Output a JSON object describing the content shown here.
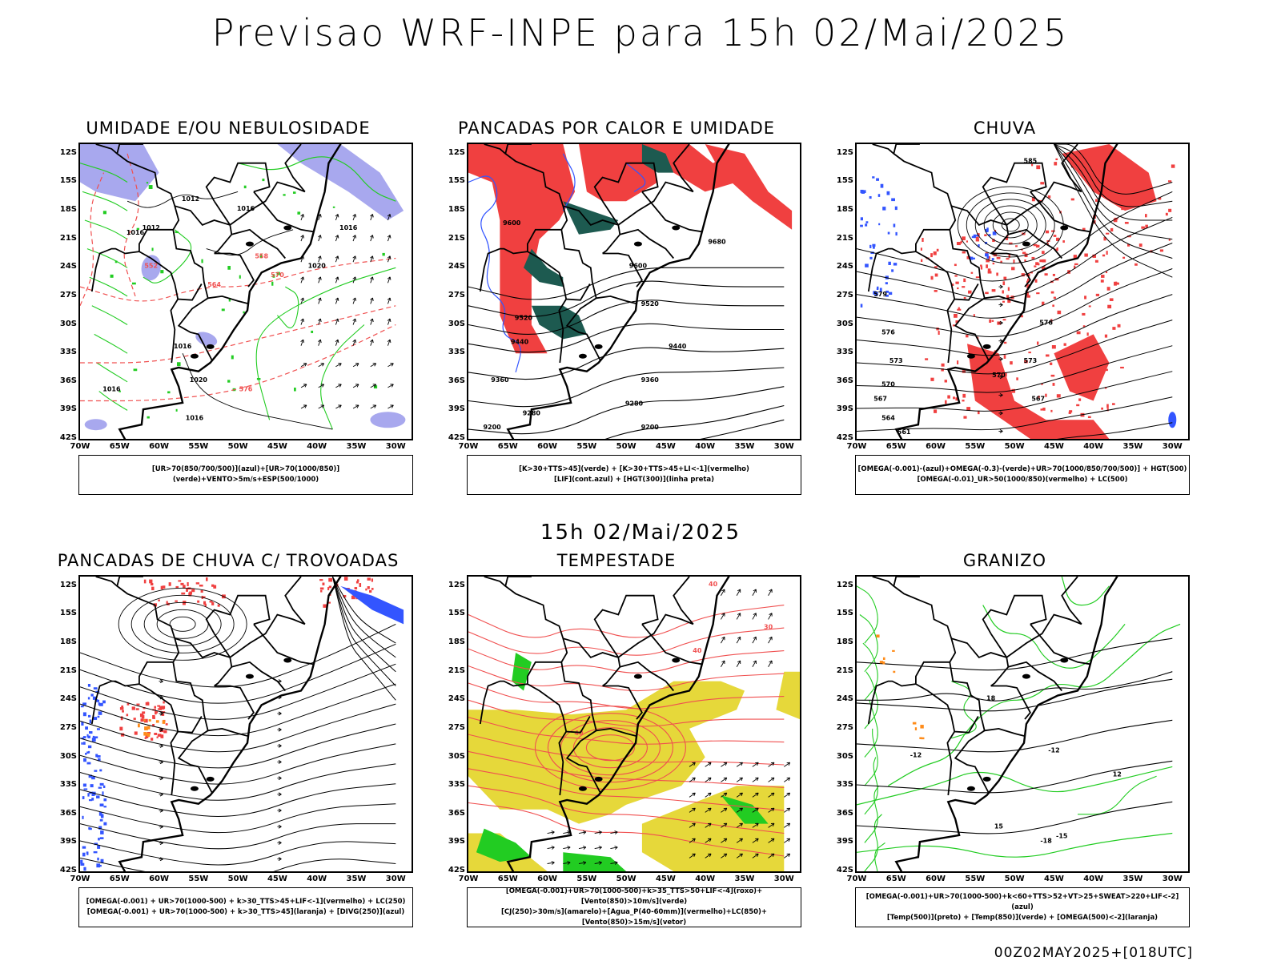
{
  "header": {
    "title": "Previsao WRF-INPE  para 15h 02/Mai/2025",
    "subtitle": "15h 02/Mai/2025",
    "footer": "00Z02MAY2025+[018UTC]"
  },
  "axes": {
    "lat_labels": [
      "12S",
      "15S",
      "18S",
      "21S",
      "24S",
      "27S",
      "30S",
      "33S",
      "36S",
      "39S",
      "42S"
    ],
    "lon_labels": [
      "70W",
      "65W",
      "60W",
      "55W",
      "50W",
      "45W",
      "40W",
      "35W",
      "30W"
    ]
  },
  "colors": {
    "blue_shade": "#a8a8ee",
    "green_line": "#22cc22",
    "red_fill": "#f04040",
    "dark_teal": "#1d5a50",
    "blue_line": "#3355ff",
    "yellow_fill": "#e6d83a",
    "red_line": "#f05050",
    "black": "#000000"
  },
  "chart_data": [
    {
      "type": "map",
      "title": "UMIDADE E/OU NEBULOSIDADE",
      "legend": [
        "[UR>70(850/700/500)](azul)+[UR>70(1000/850)](verde)+VENTO>5m/s+ESP(500/1000)"
      ],
      "contour_labels": [
        "1012",
        "1016",
        "1016",
        "1020",
        "1016",
        "1016",
        "1016",
        "570",
        "576",
        "564",
        "558",
        "552",
        "1020",
        "1012",
        "1016"
      ]
    },
    {
      "type": "map",
      "title": "PANCADAS POR CALOR E UMIDADE",
      "legend": [
        "[K>30+TTS>45](verde) + [K>30+TTS>45+LI<-1](vermelho)",
        "[LIF](cont.azul) + [HGT(300)](linha preta)"
      ],
      "contour_labels": [
        "9600",
        "9520",
        "9440",
        "9360",
        "9280",
        "9200",
        "9680",
        "9600",
        "9520",
        "9440",
        "9360",
        "9280",
        "9200"
      ]
    },
    {
      "type": "map",
      "title": "CHUVA",
      "legend": [
        "[OMEGA(-0.001)-(azul)+OMEGA(-0.3)-(verde)+UR>70(1000/850/700/500)] + HGT(500)",
        "[OMEGA(-0.01)_UR>50(1000/850)(vermelho) + LC(500)"
      ],
      "contour_labels": [
        "585",
        "579",
        "576",
        "573",
        "570",
        "567",
        "564",
        "561",
        "576",
        "573",
        "570",
        "567"
      ]
    },
    {
      "type": "map",
      "title": "PANCADAS DE CHUVA C/ TROVOADAS",
      "legend": [
        "[OMEGA(-0.001) + UR>70(1000-500) + k>30_TTS>45+LIF<-1](vermelho) + LC(250)",
        "[OMEGA(-0.001) + UR>70(1000-500) + k>30_TTS>45](laranja) + [DIVG(250)](azul)"
      ],
      "contour_labels": []
    },
    {
      "type": "map",
      "title": "TEMPESTADE",
      "legend": [
        "[OMEGA(-0.001)+UR>70(1000-500)+k>35_TTS>50+LIF<-4](roxo)+[Vento(850)>10m/s](verde)",
        "[CJ(250)>30m/s](amarelo)+[Agua_P(40-60mm)](vermelho)+LC(850)+[Vento(850)>15m/s](vetor)"
      ],
      "contour_labels": [
        "40",
        "40",
        "30",
        "40"
      ]
    },
    {
      "type": "map",
      "title": "GRANIZO",
      "legend": [
        "[OMEGA(-0.001)+UR>70(1000-500)+k<60+TTS>52+VT>25+SWEAT>220+LIF<-2](azul)",
        "[Temp(500)](preto) + [Temp(850)](verde) + [OMEGA(500)<-2](laranja)"
      ],
      "contour_labels": [
        "-12",
        "-12",
        "-15",
        "-18",
        "15",
        "12",
        "18"
      ]
    }
  ]
}
